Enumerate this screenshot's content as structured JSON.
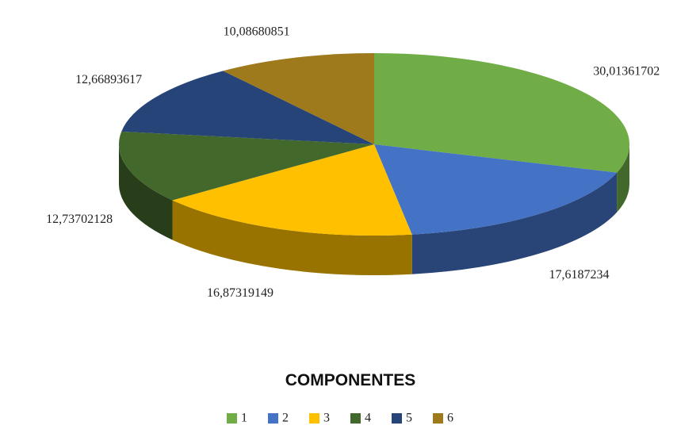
{
  "chart_data": {
    "type": "pie",
    "title": "COMPONENTES",
    "categories": [
      "1",
      "2",
      "3",
      "4",
      "5",
      "6"
    ],
    "values": [
      30.01361702,
      17.6187234,
      16.87319149,
      12.73702128,
      12.66893617,
      10.08680851
    ],
    "value_labels": [
      "30,01361702",
      "17,6187234",
      "16,87319149",
      "12,73702128",
      "12,66893617",
      "10,08680851"
    ],
    "colors": [
      "#70ad47",
      "#4472c4",
      "#ffc000",
      "#43682b",
      "#264478",
      "#9e7a1c"
    ],
    "legend": "bottom"
  }
}
